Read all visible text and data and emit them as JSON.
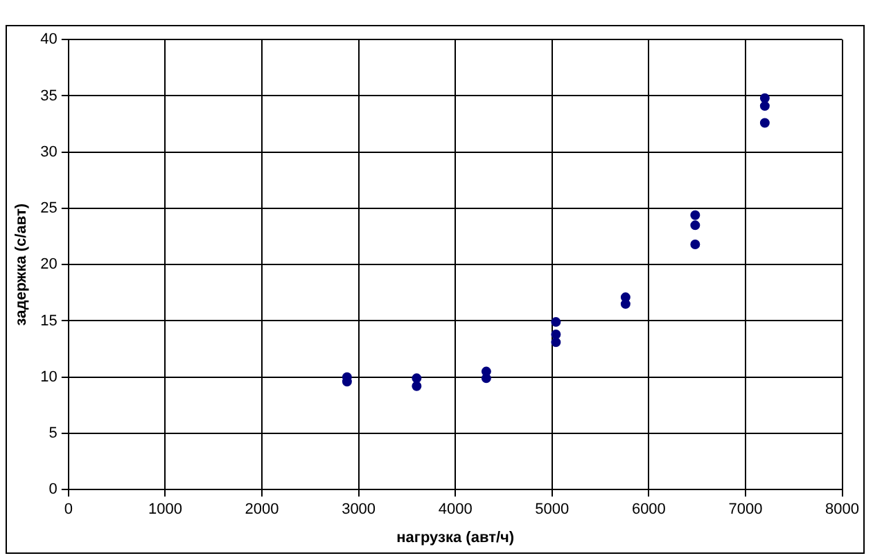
{
  "chart_data": {
    "type": "scatter",
    "xlabel": "нагрузка (авт/ч)",
    "ylabel": "задержка (с/авт)",
    "x": [
      2880,
      2880,
      3600,
      3600,
      4320,
      4320,
      5040,
      5040,
      5040,
      5760,
      5760,
      6480,
      6480,
      6480,
      7200,
      7200,
      7200
    ],
    "values": [
      10.0,
      9.6,
      9.9,
      9.2,
      10.5,
      9.9,
      14.9,
      13.8,
      13.1,
      17.1,
      16.5,
      24.4,
      23.5,
      21.8,
      34.8,
      34.1,
      32.6
    ],
    "color": "#000080",
    "marker": "circle",
    "xlim": [
      0,
      8000
    ],
    "xticks": [
      0,
      1000,
      2000,
      3000,
      4000,
      5000,
      6000,
      7000,
      8000
    ],
    "ylim": [
      0,
      40
    ],
    "yticks": [
      0,
      5,
      10,
      15,
      20,
      25,
      30,
      35,
      40
    ],
    "grid": true,
    "legend": false
  }
}
